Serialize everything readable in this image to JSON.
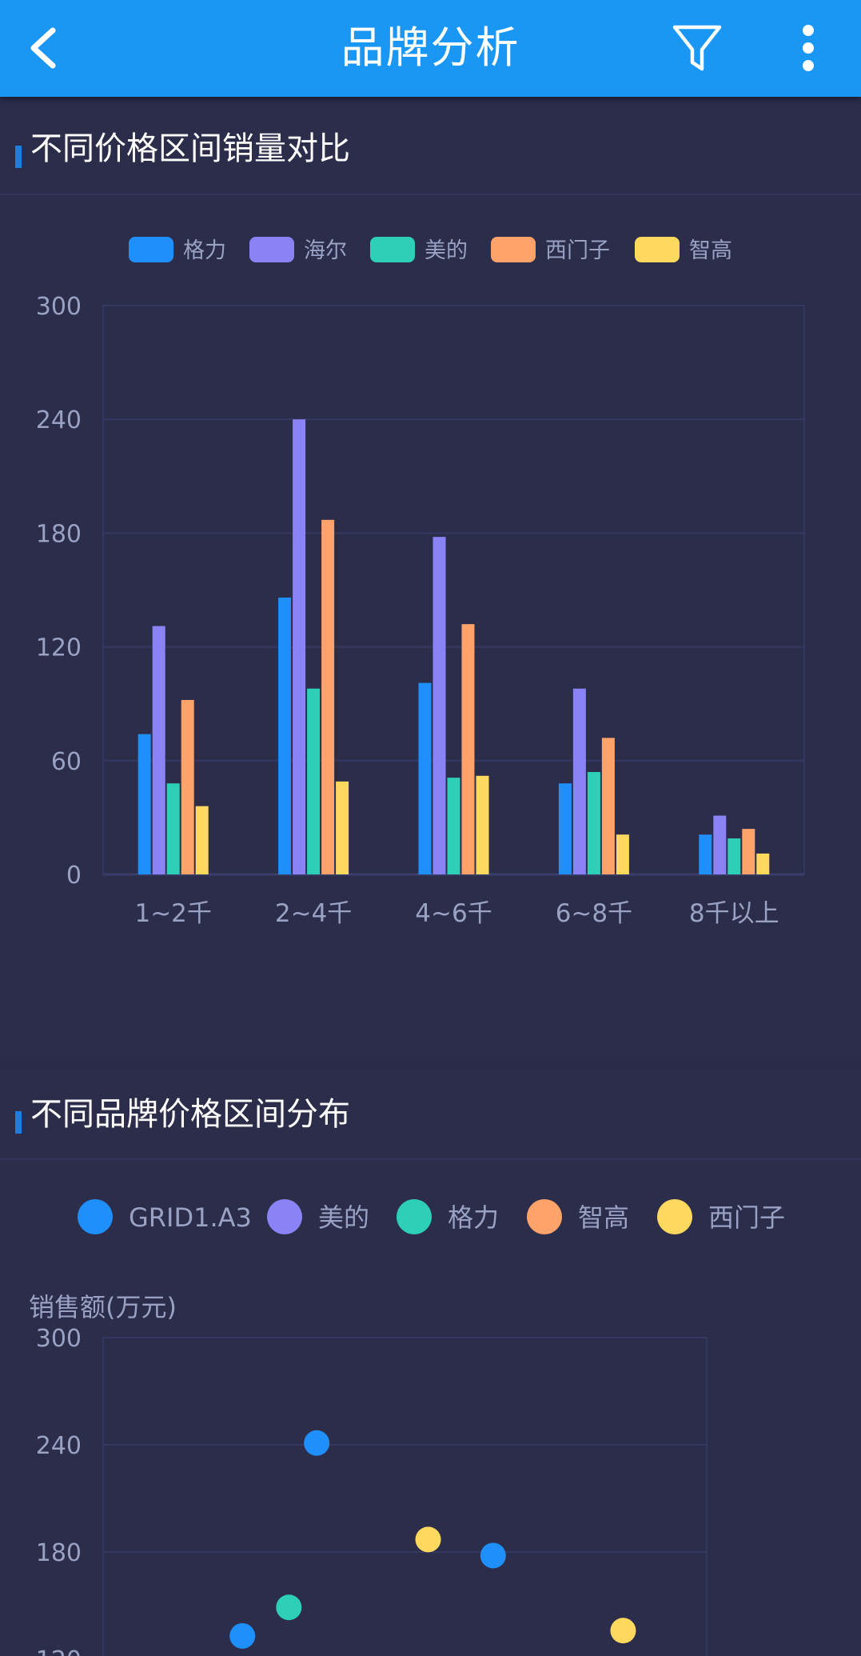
{
  "header": {
    "title": "品牌分析",
    "icons": {
      "back": "back-chevron-icon",
      "filter": "filter-icon",
      "more": "more-vertical-icon"
    }
  },
  "colors": {
    "header_bg": "#1a97f5",
    "格力": "#1e8ffb",
    "海尔": "#8a83f5",
    "美的": "#2dd0b6",
    "西门子": "#ffa36b",
    "智高": "#ffd95e"
  },
  "section1": {
    "title": "不同价格区间销量对比"
  },
  "section2": {
    "title": "不同品牌价格区间分布"
  },
  "chart_data": [
    {
      "type": "bar",
      "title": "",
      "legend_position": "top-center",
      "grid": true,
      "categories": [
        "1~2千",
        "2~4千",
        "4~6千",
        "6~8千",
        "8千以上"
      ],
      "ylim": [
        0,
        300
      ],
      "yticks": [
        "0",
        "60",
        "120",
        "180",
        "240",
        "300"
      ],
      "series": [
        {
          "name": "格力",
          "color": "#1e8ffb",
          "values": [
            74,
            146,
            101,
            48,
            21
          ]
        },
        {
          "name": "海尔",
          "color": "#8a83f5",
          "values": [
            131,
            240,
            178,
            98,
            31
          ]
        },
        {
          "name": "美的",
          "color": "#2dd0b6",
          "values": [
            48,
            98,
            51,
            54,
            19
          ]
        },
        {
          "name": "西门子",
          "color": "#ffa36b",
          "values": [
            92,
            187,
            132,
            72,
            24
          ]
        },
        {
          "name": "智高",
          "color": "#ffd95e",
          "values": [
            36,
            49,
            52,
            21,
            11
          ]
        }
      ]
    },
    {
      "type": "scatter",
      "title": "",
      "legend_position": "top-center",
      "grid": true,
      "ylabel": "销售额(万元)",
      "ylim": [
        0,
        300
      ],
      "yticks": [
        "120",
        "180",
        "240",
        "300"
      ],
      "series": [
        {
          "name": "GRID1.A3",
          "color": "#1e8ffb",
          "points": [
            {
              "x": 2.3,
              "y": 241
            },
            {
              "x": 4.2,
              "y": 178
            },
            {
              "x": 1.5,
              "y": 133
            }
          ]
        },
        {
          "name": "美的",
          "color": "#8a83f5",
          "points": []
        },
        {
          "name": "格力",
          "color": "#2dd0b6",
          "points": [
            {
              "x": 2.0,
              "y": 149
            }
          ]
        },
        {
          "name": "智高",
          "color": "#ffa36b",
          "points": []
        },
        {
          "name": "西门子",
          "color": "#ffd95e",
          "points": [
            {
              "x": 3.5,
              "y": 187
            },
            {
              "x": 5.6,
              "y": 136
            }
          ]
        }
      ]
    }
  ]
}
